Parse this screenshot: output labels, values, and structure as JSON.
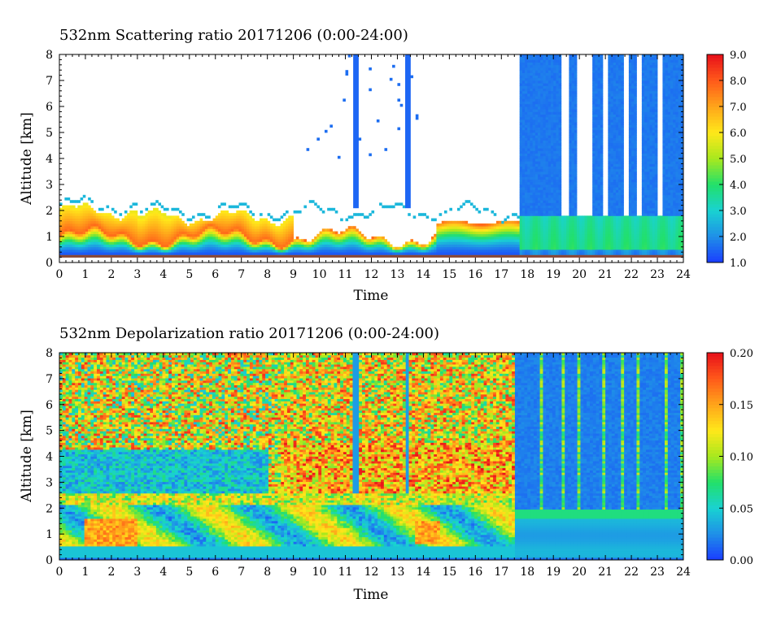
{
  "chart_data": [
    {
      "type": "heatmap",
      "title": "532nm Scattering ratio  20171206 (0:00-24:00)",
      "xlabel": "Time",
      "ylabel": "Altitude [km]",
      "xlim": [
        0,
        24
      ],
      "ylim": [
        0,
        8
      ],
      "x_ticks": [
        "0",
        "1",
        "2",
        "3",
        "4",
        "5",
        "6",
        "7",
        "8",
        "9",
        "10",
        "11",
        "12",
        "13",
        "14",
        "15",
        "16",
        "17",
        "18",
        "19",
        "20",
        "21",
        "22",
        "23",
        "24"
      ],
      "y_ticks": [
        "0",
        "1",
        "2",
        "3",
        "4",
        "5",
        "6",
        "7",
        "8"
      ],
      "colorbar": {
        "range": [
          1.0,
          9.0
        ],
        "ticks": [
          "1.0",
          "2.0",
          "3.0",
          "4.0",
          "5.0",
          "6.0",
          "7.0",
          "8.0",
          "9.0"
        ],
        "colormap": [
          "#1a3cff",
          "#1f8fe8",
          "#19d2d2",
          "#22e06a",
          "#a8e81e",
          "#ffe81a",
          "#ffa51a",
          "#ff5a1a",
          "#e8101a"
        ]
      },
      "features": {
        "cloud_base_km_daytime": 2.0,
        "boundary_layer_top_km": [
          1.0,
          1.8
        ],
        "vertical_columns_h": [
          11.4,
          13.4
        ],
        "evening_cloud_span_h": [
          17.7,
          24.0
        ]
      }
    },
    {
      "type": "heatmap",
      "title": "532nm Depolarization ratio  20171206 (0:00-24:00)",
      "xlabel": "Time",
      "ylabel": "Altitude [km]",
      "xlim": [
        0,
        24
      ],
      "ylim": [
        0,
        8
      ],
      "x_ticks": [
        "0",
        "1",
        "2",
        "3",
        "4",
        "5",
        "6",
        "7",
        "8",
        "9",
        "10",
        "11",
        "12",
        "13",
        "14",
        "15",
        "16",
        "17",
        "18",
        "19",
        "20",
        "21",
        "22",
        "23",
        "24"
      ],
      "y_ticks": [
        "0",
        "1",
        "2",
        "3",
        "4",
        "5",
        "6",
        "7",
        "8"
      ],
      "colorbar": {
        "range": [
          0.0,
          0.2
        ],
        "ticks": [
          "0.00",
          "0.05",
          "0.10",
          "0.15",
          "0.20"
        ],
        "colormap": [
          "#1a3cff",
          "#1f8fe8",
          "#19d2d2",
          "#22e06a",
          "#a8e81e",
          "#ffe81a",
          "#ffa51a",
          "#ff5a1a",
          "#e8101a"
        ]
      },
      "features": {
        "noisy_upper_region_until_h": 17.5,
        "dust_layer_km": [
          0.5,
          2.5
        ]
      }
    }
  ]
}
